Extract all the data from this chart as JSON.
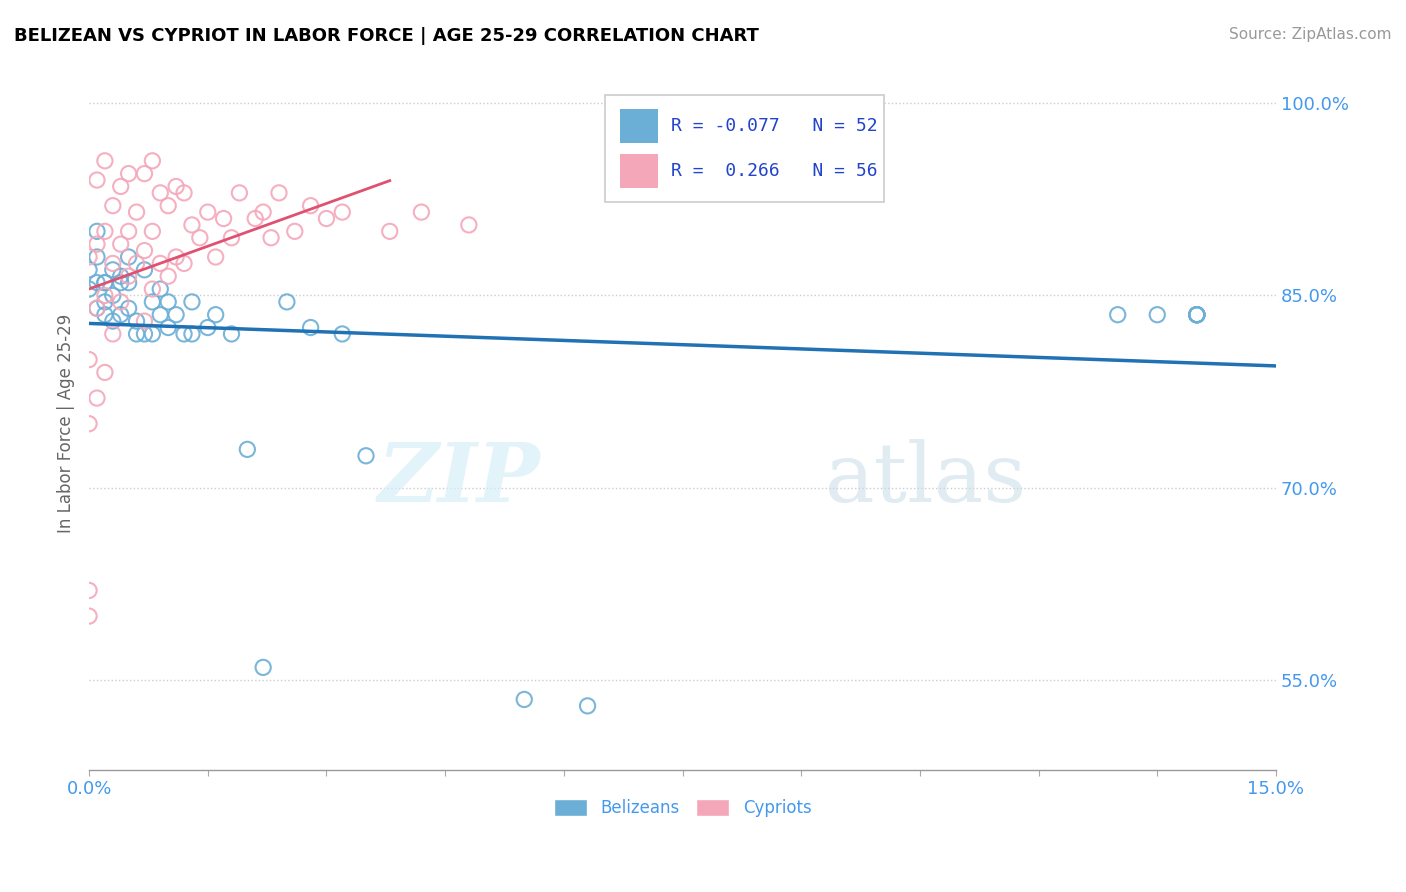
{
  "title": "BELIZEAN VS CYPRIOT IN LABOR FORCE | AGE 25-29 CORRELATION CHART",
  "source": "Source: ZipAtlas.com",
  "ylabel": "In Labor Force | Age 25-29",
  "xlim": [
    0.0,
    0.15
  ],
  "ylim": [
    0.48,
    1.02
  ],
  "xtick_pos": [
    0.0,
    0.015,
    0.03,
    0.045,
    0.06,
    0.075,
    0.09,
    0.105,
    0.12,
    0.135,
    0.15
  ],
  "ytick_pos": [
    0.55,
    0.7,
    0.85,
    1.0
  ],
  "ytick_labels": [
    "55.0%",
    "70.0%",
    "85.0%",
    "100.0%"
  ],
  "belizean_R": -0.077,
  "belizean_N": 52,
  "cypriot_R": 0.266,
  "cypriot_N": 56,
  "blue_color": "#6baed6",
  "pink_color": "#f4a7b9",
  "blue_line_color": "#2171b5",
  "pink_line_color": "#e05070",
  "legend_text_color": "#2244cc",
  "belizean_x": [
    0.0,
    0.0,
    0.001,
    0.001,
    0.001,
    0.001,
    0.002,
    0.002,
    0.002,
    0.002,
    0.003,
    0.003,
    0.003,
    0.004,
    0.004,
    0.004,
    0.005,
    0.005,
    0.005,
    0.006,
    0.006,
    0.007,
    0.007,
    0.008,
    0.008,
    0.009,
    0.009,
    0.01,
    0.01,
    0.011,
    0.012,
    0.013,
    0.013,
    0.015,
    0.016,
    0.018,
    0.02,
    0.022,
    0.025,
    0.028,
    0.032,
    0.035,
    0.055,
    0.063,
    0.13,
    0.135,
    0.14,
    0.14,
    0.14,
    0.14,
    0.14,
    0.14
  ],
  "belizean_y": [
    0.87,
    0.855,
    0.88,
    0.9,
    0.86,
    0.84,
    0.86,
    0.845,
    0.86,
    0.835,
    0.87,
    0.85,
    0.83,
    0.865,
    0.835,
    0.86,
    0.88,
    0.86,
    0.84,
    0.83,
    0.82,
    0.87,
    0.82,
    0.845,
    0.82,
    0.855,
    0.835,
    0.845,
    0.825,
    0.835,
    0.82,
    0.845,
    0.82,
    0.825,
    0.835,
    0.82,
    0.73,
    0.56,
    0.845,
    0.825,
    0.82,
    0.725,
    0.535,
    0.53,
    0.835,
    0.835,
    0.835,
    0.835,
    0.835,
    0.835,
    0.835,
    0.835
  ],
  "cypriot_x": [
    0.0,
    0.0,
    0.0,
    0.0,
    0.001,
    0.001,
    0.001,
    0.001,
    0.002,
    0.002,
    0.002,
    0.002,
    0.003,
    0.003,
    0.003,
    0.004,
    0.004,
    0.004,
    0.005,
    0.005,
    0.005,
    0.006,
    0.006,
    0.007,
    0.007,
    0.007,
    0.008,
    0.008,
    0.008,
    0.009,
    0.009,
    0.01,
    0.01,
    0.011,
    0.011,
    0.012,
    0.012,
    0.013,
    0.014,
    0.015,
    0.016,
    0.017,
    0.018,
    0.019,
    0.021,
    0.022,
    0.023,
    0.024,
    0.026,
    0.028,
    0.03,
    0.032,
    0.038,
    0.042,
    0.048,
    0.0
  ],
  "cypriot_y": [
    0.62,
    0.75,
    0.8,
    0.88,
    0.77,
    0.84,
    0.89,
    0.94,
    0.79,
    0.85,
    0.9,
    0.955,
    0.82,
    0.875,
    0.92,
    0.845,
    0.89,
    0.935,
    0.865,
    0.9,
    0.945,
    0.875,
    0.915,
    0.83,
    0.885,
    0.945,
    0.855,
    0.9,
    0.955,
    0.875,
    0.93,
    0.865,
    0.92,
    0.88,
    0.935,
    0.875,
    0.93,
    0.905,
    0.895,
    0.915,
    0.88,
    0.91,
    0.895,
    0.93,
    0.91,
    0.915,
    0.895,
    0.93,
    0.9,
    0.92,
    0.91,
    0.915,
    0.9,
    0.915,
    0.905,
    0.6
  ]
}
